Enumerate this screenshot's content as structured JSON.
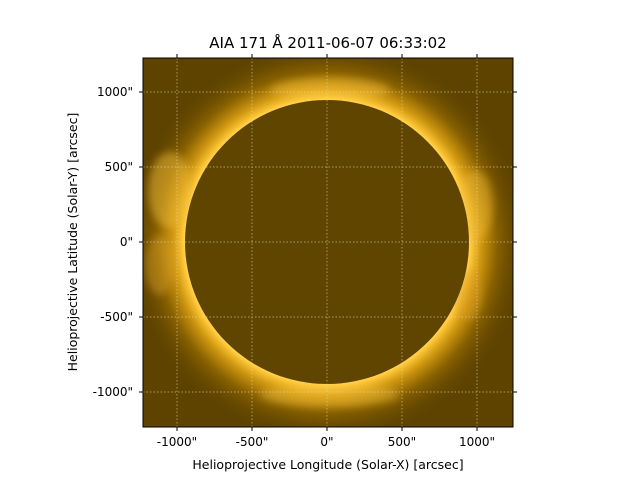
{
  "figure": {
    "title": "AIA 171 Å 2011-06-07 06:33:02",
    "xlabel": "Helioprojective Longitude (Solar-X) [arcsec]",
    "ylabel": "Helioprojective Latitude (Solar-Y) [arcsec]",
    "x_ticks": [
      "-1000\"",
      "-500\"",
      "0\"",
      "500\"",
      "1000\""
    ],
    "y_ticks": [
      "1000\"",
      "500\"",
      "0\"",
      "-500\"",
      "-1000\""
    ],
    "image_description_colors": {
      "background": "#5e4300",
      "disk": "#5f4500",
      "limb_glow": "#ffcf3a",
      "grid": "#e6d6a0"
    }
  }
}
